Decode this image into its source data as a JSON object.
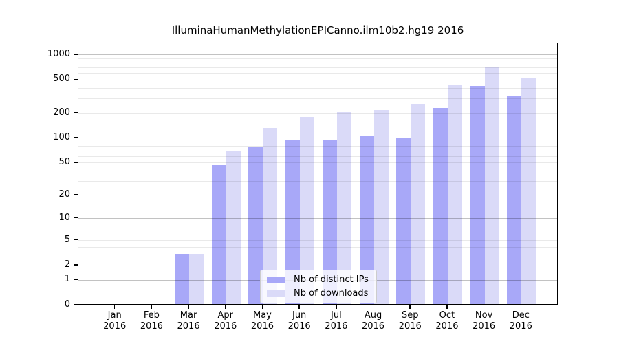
{
  "title": "IlluminaHumanMethylationEPICanno.ilm10b2.hg19 2016",
  "colors": {
    "distinct_ips_bar": "#a8a8f8",
    "downloads_bar": "#dadaf8",
    "axis": "#000000",
    "major_grid": "#bfbfbf",
    "minor_grid": "#e9e9e9",
    "legend_border": "#cccccc",
    "background": "#ffffff"
  },
  "legend": {
    "items": [
      {
        "label": "Nb of distinct IPs",
        "color": "#a8a8f8"
      },
      {
        "label": "Nb of downloads",
        "color": "#dadaf8"
      }
    ]
  },
  "chart_data": {
    "type": "bar",
    "title": "IlluminaHumanMethylationEPICanno.ilm10b2.hg19 2016",
    "categories": [
      "Jan 2016",
      "Feb 2016",
      "Mar 2016",
      "Apr 2016",
      "May 2016",
      "Jun 2016",
      "Jul 2016",
      "Aug 2016",
      "Sep 2016",
      "Oct 2016",
      "Nov 2016",
      "Dec 2016"
    ],
    "series": [
      {
        "name": "Nb of distinct IPs",
        "color": "#a8a8f8",
        "values": [
          0,
          0,
          3,
          45,
          75,
          90,
          90,
          104,
          98,
          222,
          410,
          307
        ]
      },
      {
        "name": "Nb of downloads",
        "color": "#dadaf8",
        "values": [
          0,
          0,
          3,
          67,
          129,
          173,
          197,
          210,
          249,
          425,
          700,
          515
        ]
      }
    ],
    "xlabel": "",
    "ylabel": "",
    "yscale": "log1p",
    "y_ticks": [
      0,
      1,
      2,
      5,
      10,
      20,
      50,
      100,
      200,
      500,
      1000
    ],
    "ylim": [
      0,
      1380
    ],
    "grid": "horizontal",
    "legend_position": "lower-center"
  }
}
